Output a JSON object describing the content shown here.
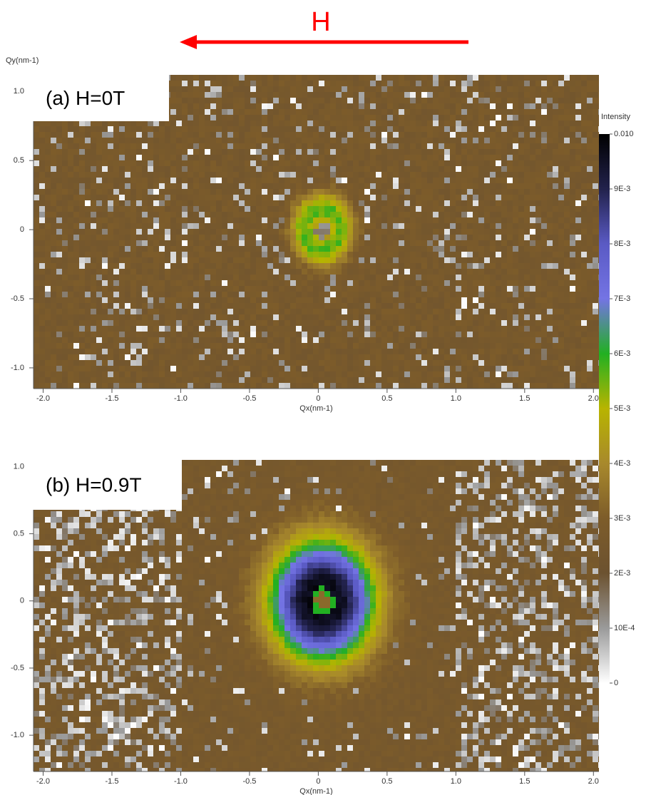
{
  "annotation": {
    "text": "H",
    "color": "#ff0000"
  },
  "colorbar": {
    "label": "Intensity",
    "ticks": [
      {
        "value": 0.01,
        "label": "0.010"
      },
      {
        "value": 0.009,
        "label": "9E-3"
      },
      {
        "value": 0.008,
        "label": "8E-3"
      },
      {
        "value": 0.007,
        "label": "7E-3"
      },
      {
        "value": 0.006,
        "label": "6E-3"
      },
      {
        "value": 0.005,
        "label": "5E-3"
      },
      {
        "value": 0.004,
        "label": "4E-3"
      },
      {
        "value": 0.003,
        "label": "3E-3"
      },
      {
        "value": 0.002,
        "label": "2E-3"
      },
      {
        "value": 0.001,
        "label": "10E-4"
      },
      0
    ],
    "colors": [
      "#000000",
      "#22224c",
      "#5a5ac4",
      "#7474e4",
      "#22b022",
      "#b8b400",
      "#a8892c",
      "#7d5c2a",
      "#6c5230",
      "#9a9a9a",
      "#ffffff"
    ]
  },
  "chart_data": [
    {
      "type": "heatmap",
      "label": "(a)  H=0T",
      "x_label": "Qx(nm-1)",
      "y_label": "Qy(nm-1)",
      "xlim": [
        -2.07,
        2.04
      ],
      "ylim": [
        -1.15,
        1.12
      ],
      "xticks": [
        {
          "value": -2,
          "label": "-2.0"
        },
        {
          "value": -1.5,
          "label": "-1.5"
        },
        {
          "value": -1,
          "label": "-1.0"
        },
        {
          "value": -0.5,
          "label": "-0.5"
        },
        0,
        {
          "value": 0.5,
          "label": "0.5"
        },
        {
          "value": 1,
          "label": "1.0"
        },
        {
          "value": 1.5,
          "label": "1.5"
        },
        {
          "value": 2,
          "label": "2.0"
        }
      ],
      "yticks": [
        {
          "value": 1,
          "label": "1.0"
        },
        {
          "value": 0.5,
          "label": "0.5"
        },
        0,
        {
          "value": -0.5,
          "label": "-0.5"
        },
        {
          "value": -1,
          "label": "-1.0"
        }
      ]
    },
    {
      "type": "heatmap",
      "label": "(b)  H=0.9T",
      "x_label": "Qx(nm-1)",
      "xlim": [
        -2.07,
        2.04
      ],
      "ylim": [
        -1.27,
        1.05
      ],
      "xticks": [
        {
          "value": -2,
          "label": "-2.0"
        },
        {
          "value": -1.5,
          "label": "-1.5"
        },
        {
          "value": -1,
          "label": "-1.0"
        },
        {
          "value": -0.5,
          "label": "-0.5"
        },
        0,
        {
          "value": 0.5,
          "label": "0.5"
        },
        {
          "value": 1,
          "label": "1.0"
        },
        {
          "value": 1.5,
          "label": "1.5"
        },
        {
          "value": 2,
          "label": "2.0"
        }
      ],
      "yticks": [
        {
          "value": 1,
          "label": "1.0"
        },
        {
          "value": 0.5,
          "label": "0.5"
        },
        0,
        {
          "value": -0.5,
          "label": "-0.5"
        },
        {
          "value": -1,
          "label": "-1.0"
        }
      ]
    }
  ]
}
